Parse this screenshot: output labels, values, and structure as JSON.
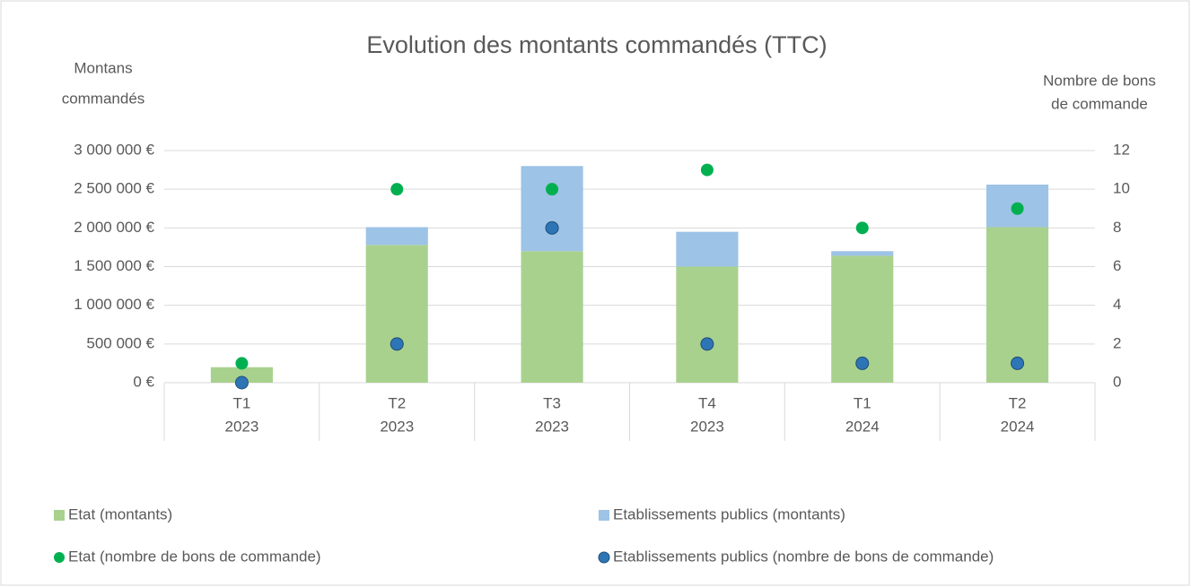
{
  "chart_data": {
    "type": "bar",
    "stacked": true,
    "title": "Evolution des montants commandés (TTC)",
    "ylabel": [
      "Montans",
      "commandés"
    ],
    "y2label": [
      "Nombre de bons",
      "de commande"
    ],
    "categories": [
      [
        "T1",
        "2023"
      ],
      [
        "T2",
        "2023"
      ],
      [
        "T3",
        "2023"
      ],
      [
        "T4",
        "2023"
      ],
      [
        "T1",
        "2024"
      ],
      [
        "T2",
        "2024"
      ]
    ],
    "series": [
      {
        "name": "Etat (montants)",
        "type": "bar",
        "color": "#a9d18e",
        "values": [
          200000,
          1780000,
          1700000,
          1500000,
          1640000,
          2010000
        ]
      },
      {
        "name": "Etablissements publics (montants)",
        "type": "bar",
        "color": "#9dc3e6",
        "values": [
          0,
          230000,
          1100000,
          450000,
          60000,
          550000
        ]
      },
      {
        "name": "Etat (nombre de bons de commande)",
        "type": "scatter",
        "axis": "y2",
        "color": "#00b050",
        "values": [
          1,
          10,
          10,
          11,
          8,
          9
        ]
      },
      {
        "name": "Etablissements publics (nombre de bons de commande)",
        "type": "scatter",
        "axis": "y2",
        "color": "#2e75b6",
        "values": [
          0,
          2,
          8,
          2,
          1,
          1
        ]
      }
    ],
    "ylim": [
      0,
      3000000
    ],
    "yticks": [
      {
        "value": 0,
        "label": "0 €"
      },
      {
        "value": 500000,
        "label": "500 000 €"
      },
      {
        "value": 1000000,
        "label": "1 000 000 €"
      },
      {
        "value": 1500000,
        "label": "1 500 000 €"
      },
      {
        "value": 2000000,
        "label": "2 000 000 €"
      },
      {
        "value": 2500000,
        "label": "2 500 000 €"
      },
      {
        "value": 3000000,
        "label": "3 000 000 €"
      }
    ],
    "y2lim": [
      0,
      12
    ],
    "y2ticks": [
      0,
      2,
      4,
      6,
      8,
      10,
      12
    ],
    "grid": true,
    "legend": "bottom"
  }
}
